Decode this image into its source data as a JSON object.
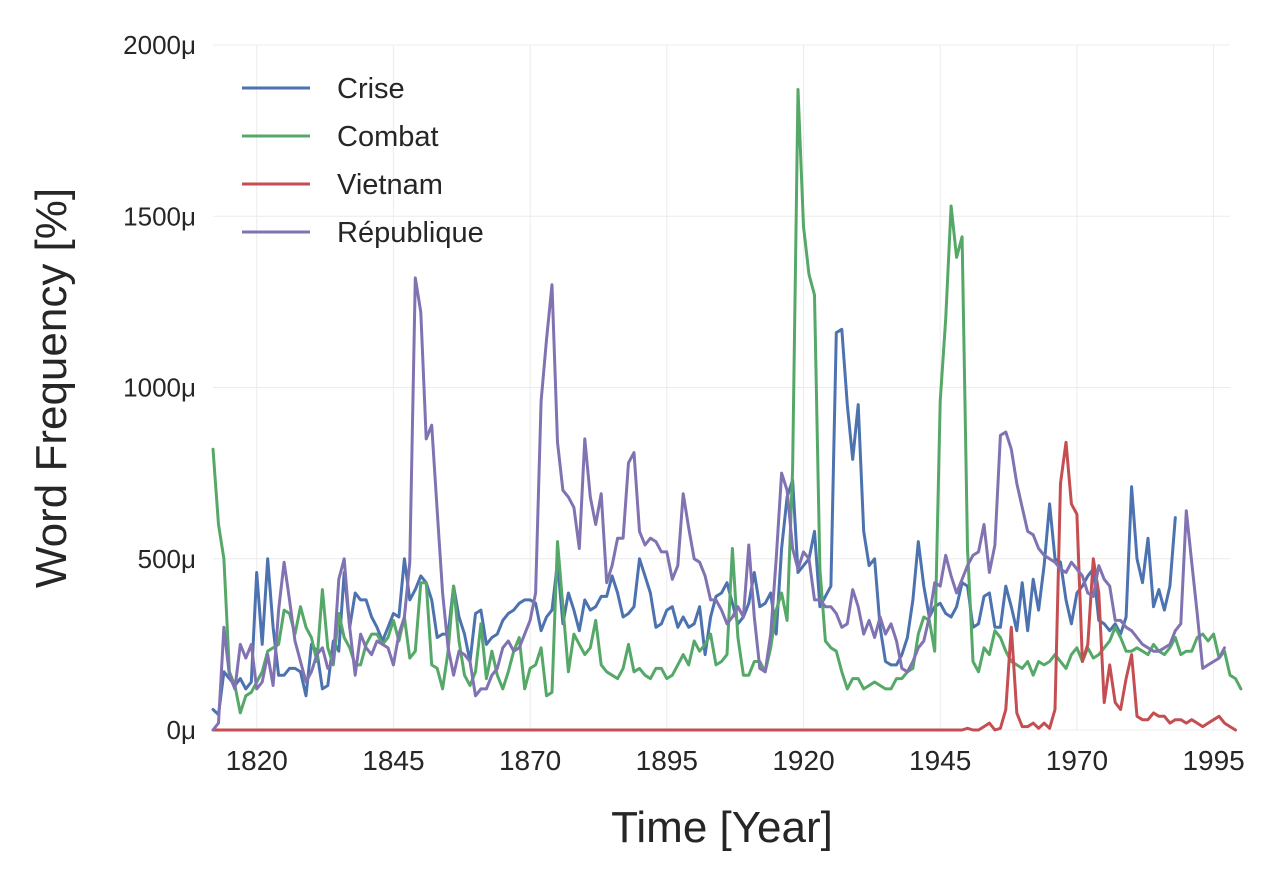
{
  "chart_data": {
    "type": "line",
    "title": "",
    "xlabel": "Time [Year]",
    "ylabel": "Word Frequency [%]",
    "xlim": [
      1812,
      1998
    ],
    "ylim": [
      0,
      2000
    ],
    "x_ticks": [
      1820,
      1845,
      1870,
      1895,
      1920,
      1945,
      1970,
      1995
    ],
    "x_tick_labels": [
      "1820",
      "1845",
      "1870",
      "1895",
      "1920",
      "1945",
      "1970",
      "1995"
    ],
    "y_ticks": [
      0,
      500,
      1000,
      1500,
      2000
    ],
    "y_tick_labels": [
      "0μ",
      "500μ",
      "1000μ",
      "1500μ",
      "2000μ"
    ],
    "grid": true,
    "legend_position": "top-left",
    "x_start": 1812,
    "x_step": 1,
    "series": [
      {
        "name": "Crise",
        "color": "#4c72b0",
        "values": [
          60,
          45,
          170,
          150,
          130,
          150,
          120,
          140,
          460,
          250,
          500,
          300,
          160,
          160,
          180,
          180,
          170,
          100,
          250,
          230,
          120,
          130,
          260,
          230,
          460,
          300,
          400,
          380,
          380,
          330,
          300,
          260,
          300,
          340,
          330,
          500,
          380,
          410,
          450,
          430,
          380,
          270,
          280,
          280,
          420,
          330,
          280,
          200,
          340,
          350,
          250,
          270,
          280,
          320,
          340,
          350,
          370,
          380,
          380,
          370,
          290,
          330,
          350,
          490,
          310,
          400,
          350,
          290,
          380,
          350,
          360,
          390,
          390,
          450,
          400,
          330,
          340,
          360,
          500,
          450,
          400,
          300,
          310,
          350,
          360,
          300,
          330,
          300,
          310,
          360,
          220,
          330,
          390,
          400,
          430,
          370,
          310,
          330,
          370,
          460,
          360,
          370,
          400,
          280,
          530,
          680,
          730,
          460,
          480,
          500,
          580,
          360,
          390,
          420,
          1160,
          1170,
          950,
          790,
          950,
          580,
          480,
          500,
          300,
          200,
          190,
          190,
          220,
          270,
          380,
          550,
          420,
          330,
          360,
          370,
          340,
          330,
          360,
          430,
          420,
          300,
          310,
          390,
          400,
          300,
          300,
          420,
          360,
          290,
          430,
          290,
          440,
          350,
          480,
          660,
          500,
          490,
          380,
          310,
          400,
          420,
          450,
          470,
          320,
          310,
          290,
          310,
          280,
          330,
          710,
          500,
          430,
          560,
          360,
          410,
          350,
          420,
          620
        ]
      },
      {
        "name": "Combat",
        "color": "#55a868",
        "values": [
          820,
          600,
          500,
          170,
          130,
          50,
          100,
          110,
          140,
          170,
          230,
          240,
          250,
          350,
          340,
          280,
          360,
          300,
          270,
          200,
          410,
          240,
          190,
          340,
          270,
          240,
          190,
          190,
          250,
          280,
          280,
          250,
          270,
          320,
          260,
          330,
          210,
          230,
          430,
          430,
          190,
          180,
          120,
          230,
          420,
          260,
          160,
          130,
          170,
          310,
          150,
          230,
          160,
          120,
          170,
          230,
          270,
          120,
          180,
          190,
          240,
          100,
          110,
          550,
          360,
          170,
          280,
          250,
          220,
          240,
          320,
          190,
          170,
          160,
          150,
          180,
          250,
          170,
          180,
          160,
          150,
          180,
          180,
          150,
          160,
          190,
          220,
          190,
          260,
          230,
          250,
          280,
          190,
          200,
          220,
          530,
          270,
          160,
          160,
          200,
          200,
          170,
          240,
          350,
          400,
          320,
          760,
          1870,
          1470,
          1330,
          1270,
          470,
          260,
          240,
          230,
          170,
          120,
          150,
          150,
          120,
          130,
          140,
          130,
          120,
          120,
          150,
          150,
          170,
          180,
          280,
          330,
          320,
          230,
          960,
          1200,
          1530,
          1380,
          1440,
          530,
          200,
          170,
          240,
          220,
          290,
          270,
          230,
          200,
          190,
          180,
          200,
          160,
          200,
          190,
          200,
          220,
          200,
          180,
          220,
          240,
          200,
          240,
          210,
          220,
          240,
          260,
          300,
          270,
          230,
          230,
          240,
          230,
          220,
          250,
          230,
          220,
          240,
          270,
          220,
          230,
          230,
          270,
          280,
          260,
          280,
          210,
          230,
          160,
          150,
          120
        ]
      },
      {
        "name": "Vietnam",
        "color": "#c44e52",
        "values": [
          0,
          0,
          0,
          0,
          0,
          0,
          0,
          0,
          0,
          0,
          0,
          0,
          0,
          0,
          0,
          0,
          0,
          0,
          0,
          0,
          0,
          0,
          0,
          0,
          0,
          0,
          0,
          0,
          0,
          0,
          0,
          0,
          0,
          0,
          0,
          0,
          0,
          0,
          0,
          0,
          0,
          0,
          0,
          0,
          0,
          0,
          0,
          0,
          0,
          0,
          0,
          0,
          0,
          0,
          0,
          0,
          0,
          0,
          0,
          0,
          0,
          0,
          0,
          0,
          0,
          0,
          0,
          0,
          0,
          0,
          0,
          0,
          0,
          0,
          0,
          0,
          0,
          0,
          0,
          0,
          0,
          0,
          0,
          0,
          0,
          0,
          0,
          0,
          0,
          0,
          0,
          0,
          0,
          0,
          0,
          0,
          0,
          0,
          0,
          0,
          0,
          0,
          0,
          0,
          0,
          0,
          0,
          0,
          0,
          0,
          0,
          0,
          0,
          0,
          0,
          0,
          0,
          0,
          0,
          0,
          0,
          0,
          0,
          0,
          0,
          0,
          0,
          0,
          0,
          0,
          0,
          0,
          0,
          0,
          0,
          0,
          0,
          0,
          5,
          0,
          0,
          10,
          20,
          0,
          5,
          60,
          300,
          50,
          10,
          10,
          20,
          5,
          20,
          5,
          60,
          720,
          840,
          660,
          630,
          200,
          250,
          500,
          400,
          80,
          190,
          80,
          60,
          150,
          220,
          40,
          30,
          30,
          50,
          40,
          40,
          20,
          30,
          30,
          20,
          30,
          20,
          10,
          20,
          30,
          40,
          20,
          10,
          0
        ]
      },
      {
        "name": "République",
        "color": "#8172b2",
        "values": [
          0,
          20,
          300,
          160,
          120,
          250,
          210,
          250,
          120,
          140,
          220,
          130,
          350,
          490,
          380,
          260,
          200,
          140,
          170,
          220,
          240,
          180,
          200,
          440,
          500,
          300,
          160,
          280,
          240,
          220,
          260,
          250,
          240,
          190,
          280,
          330,
          490,
          1320,
          1220,
          850,
          890,
          640,
          400,
          240,
          160,
          230,
          220,
          200,
          100,
          120,
          120,
          160,
          180,
          240,
          260,
          230,
          240,
          280,
          320,
          400,
          960,
          1140,
          1300,
          840,
          700,
          680,
          650,
          530,
          850,
          680,
          600,
          690,
          430,
          480,
          560,
          560,
          780,
          810,
          580,
          540,
          560,
          550,
          520,
          520,
          440,
          480,
          690,
          590,
          500,
          490,
          450,
          380,
          380,
          350,
          310,
          330,
          360,
          330,
          540,
          330,
          180,
          170,
          280,
          500,
          750,
          700,
          530,
          470,
          520,
          500,
          380,
          380,
          360,
          360,
          340,
          300,
          310,
          410,
          360,
          280,
          320,
          270,
          330,
          280,
          310,
          260,
          180,
          170,
          200,
          240,
          260,
          330,
          430,
          420,
          510,
          450,
          400,
          440,
          480,
          510,
          520,
          600,
          460,
          540,
          860,
          870,
          820,
          720,
          650,
          580,
          570,
          530,
          510,
          500,
          490,
          470,
          460,
          490,
          470,
          450,
          400,
          390,
          480,
          440,
          420,
          320,
          320,
          300,
          290,
          270,
          250,
          240,
          230,
          230,
          240,
          250,
          290,
          310,
          640,
          490,
          340,
          180,
          190,
          200,
          210,
          240
        ]
      }
    ]
  }
}
